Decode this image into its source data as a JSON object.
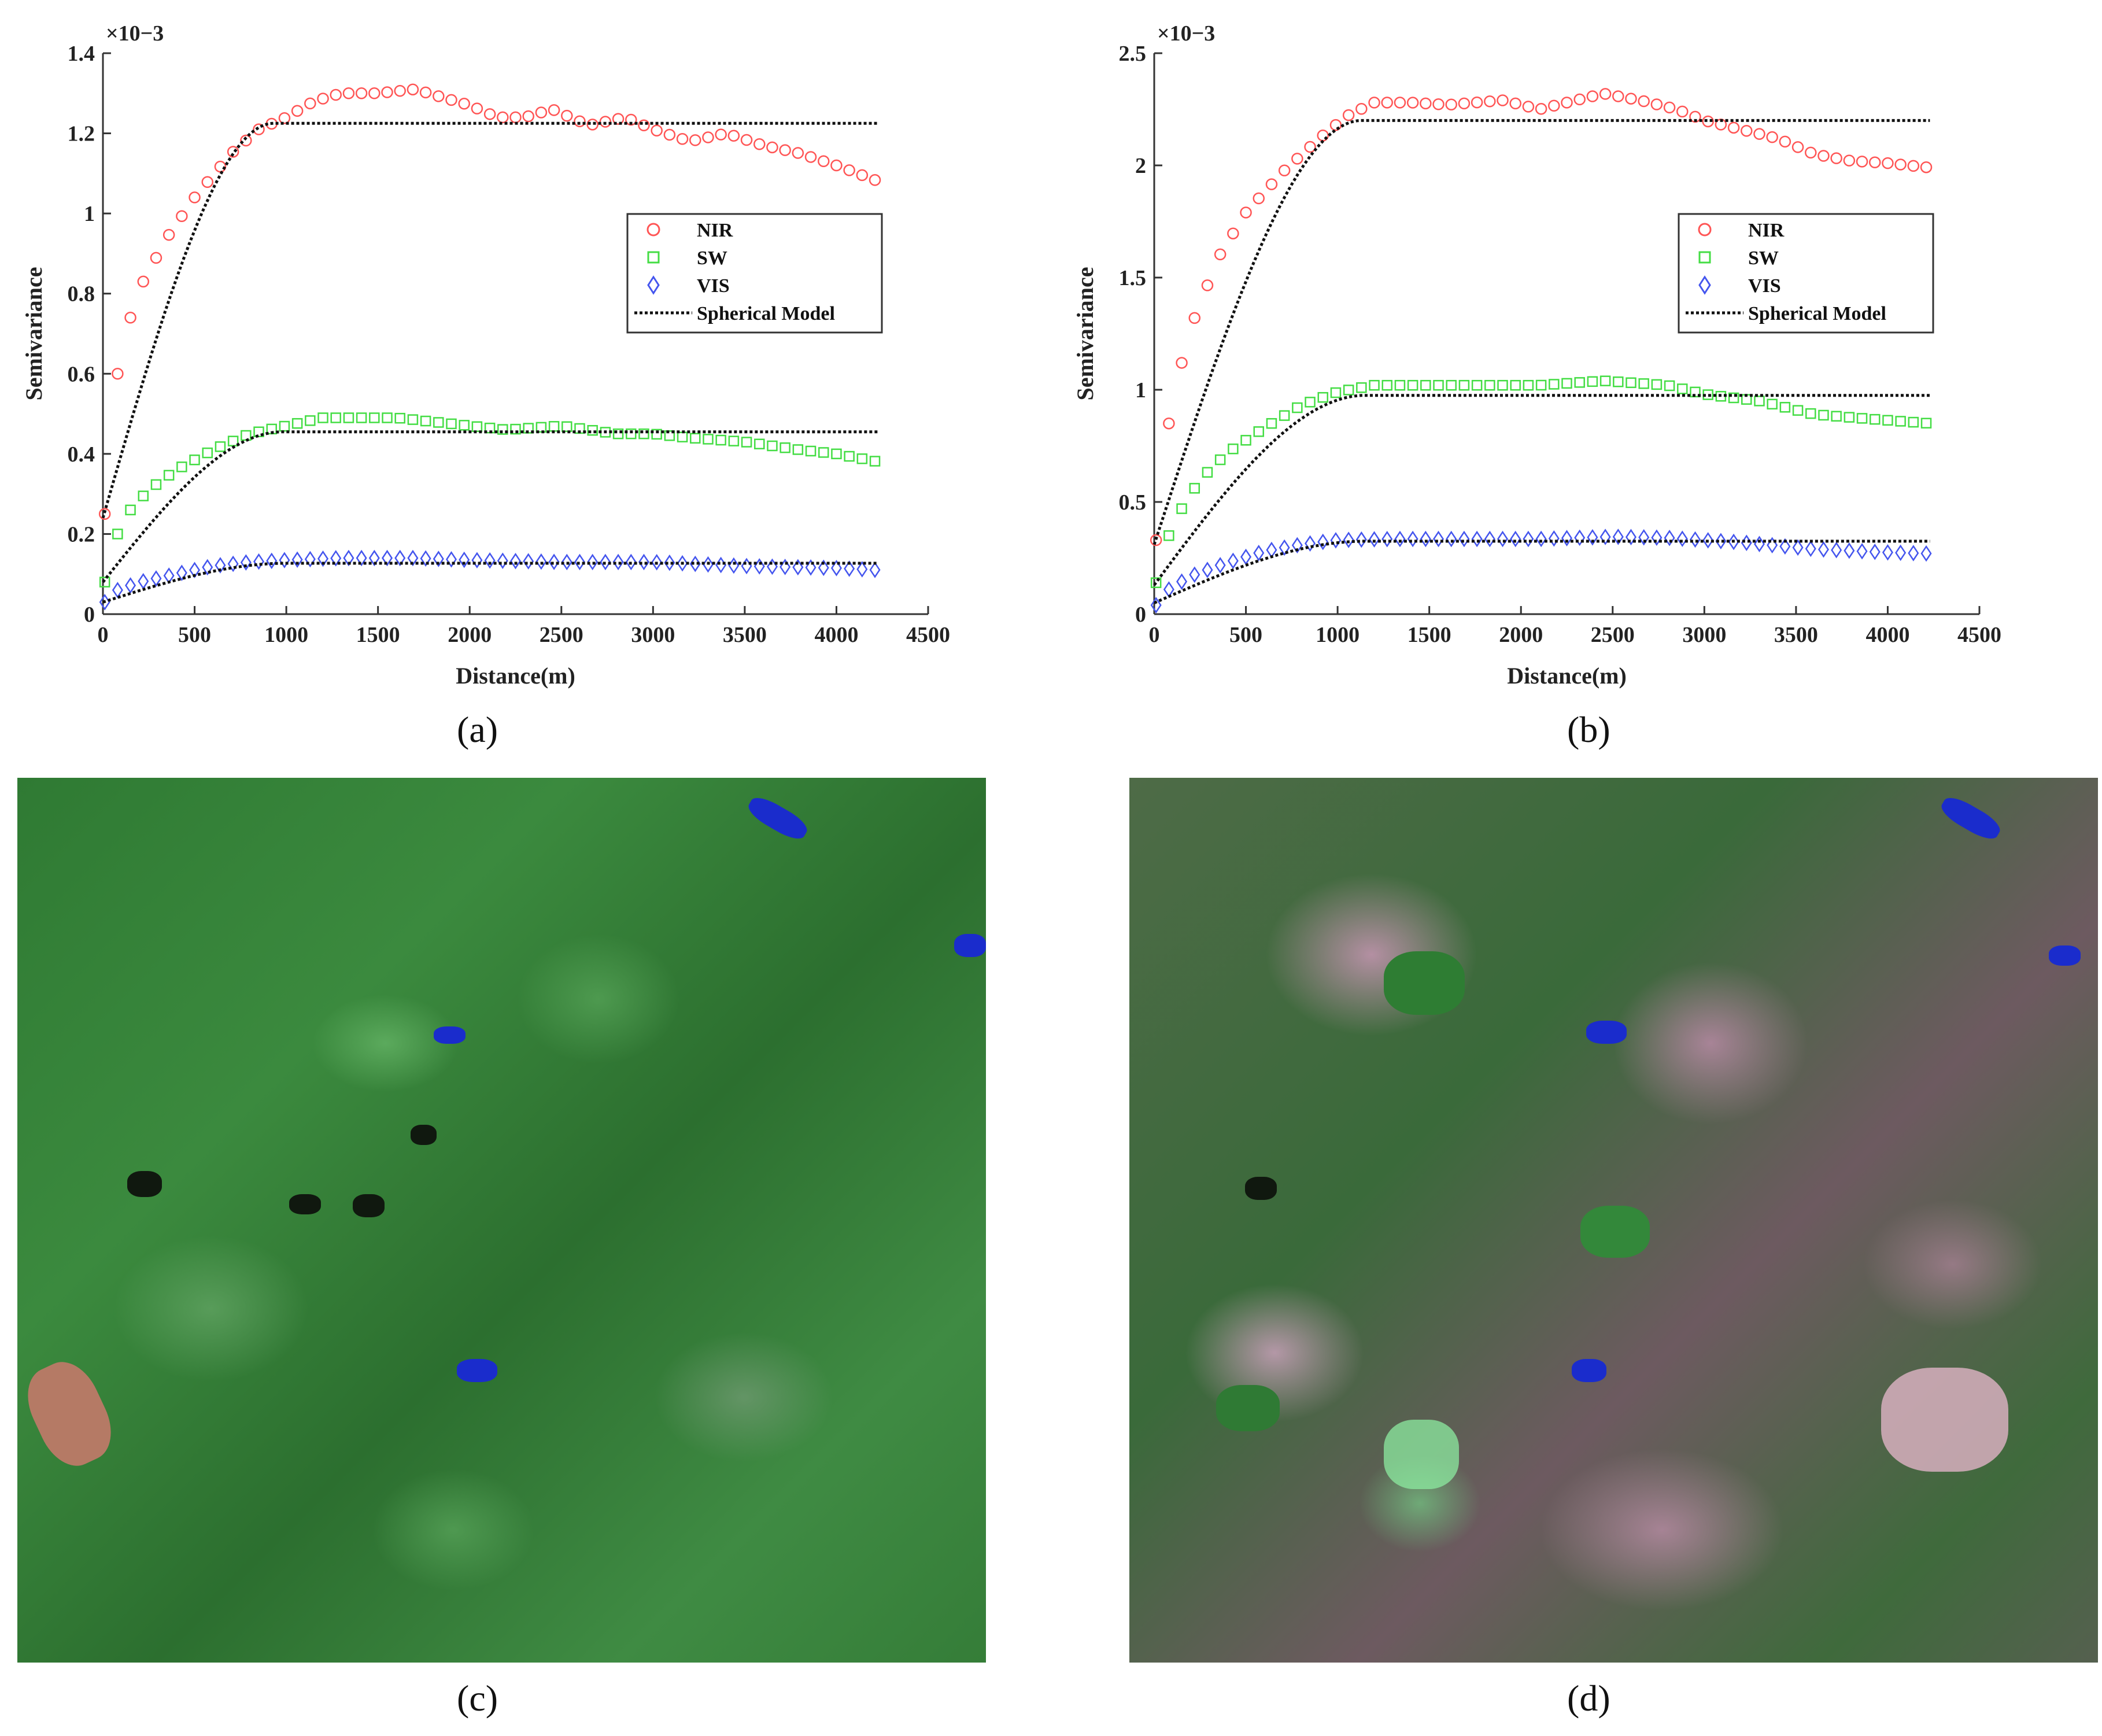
{
  "chart_data": [
    {
      "type": "scatter",
      "panel": "a",
      "caption": "(a)",
      "xlabel": "Distance(m)",
      "ylabel": "Semivariance",
      "exponent_label": "×10−3",
      "xlim": [
        0,
        4500
      ],
      "ylim": [
        0,
        1.4
      ],
      "xticks": [
        0,
        500,
        1000,
        1500,
        2000,
        2500,
        3000,
        3500,
        4000,
        4500
      ],
      "yticks": [
        0,
        0.2,
        0.4,
        0.6,
        0.8,
        1,
        1.2,
        1.4
      ],
      "ytick_labels": [
        "0",
        "0.2",
        "0.4",
        "0.6",
        "0.8",
        "1",
        "1.2",
        "1.4"
      ],
      "legend": [
        "NIR",
        "SW",
        "VIS",
        "Spherical Model"
      ],
      "legend_position": "right",
      "series": [
        {
          "name": "NIR",
          "color": "#ff5555",
          "marker": "circle",
          "knots": [
            [
              10,
              0.25
            ],
            [
              80,
              0.6
            ],
            [
              150,
              0.74
            ],
            [
              220,
              0.83
            ],
            [
              350,
              0.94
            ],
            [
              500,
              1.04
            ],
            [
              700,
              1.15
            ],
            [
              850,
              1.21
            ],
            [
              1000,
              1.24
            ],
            [
              1150,
              1.28
            ],
            [
              1300,
              1.3
            ],
            [
              1500,
              1.3
            ],
            [
              1700,
              1.31
            ],
            [
              1850,
              1.29
            ],
            [
              2000,
              1.27
            ],
            [
              2150,
              1.24
            ],
            [
              2300,
              1.24
            ],
            [
              2450,
              1.26
            ],
            [
              2650,
              1.22
            ],
            [
              2850,
              1.24
            ],
            [
              3000,
              1.21
            ],
            [
              3200,
              1.18
            ],
            [
              3400,
              1.2
            ],
            [
              3600,
              1.17
            ],
            [
              3800,
              1.15
            ],
            [
              4000,
              1.12
            ],
            [
              4230,
              1.08
            ]
          ]
        },
        {
          "name": "SW",
          "color": "#44dd44",
          "marker": "square",
          "knots": [
            [
              10,
              0.08
            ],
            [
              80,
              0.2
            ],
            [
              150,
              0.26
            ],
            [
              250,
              0.31
            ],
            [
              400,
              0.36
            ],
            [
              600,
              0.41
            ],
            [
              800,
              0.45
            ],
            [
              1000,
              0.47
            ],
            [
              1200,
              0.49
            ],
            [
              1400,
              0.49
            ],
            [
              1600,
              0.49
            ],
            [
              1800,
              0.48
            ],
            [
              2000,
              0.47
            ],
            [
              2200,
              0.46
            ],
            [
              2500,
              0.47
            ],
            [
              2800,
              0.45
            ],
            [
              3000,
              0.45
            ],
            [
              3200,
              0.44
            ],
            [
              3500,
              0.43
            ],
            [
              3800,
              0.41
            ],
            [
              4000,
              0.4
            ],
            [
              4230,
              0.38
            ]
          ]
        },
        {
          "name": "VIS",
          "color": "#4455ee",
          "marker": "diamond",
          "knots": [
            [
              10,
              0.03
            ],
            [
              80,
              0.06
            ],
            [
              200,
              0.08
            ],
            [
              400,
              0.1
            ],
            [
              600,
              0.12
            ],
            [
              800,
              0.13
            ],
            [
              1000,
              0.135
            ],
            [
              1300,
              0.14
            ],
            [
              1700,
              0.14
            ],
            [
              2000,
              0.135
            ],
            [
              2500,
              0.13
            ],
            [
              3000,
              0.13
            ],
            [
              3500,
              0.12
            ],
            [
              4000,
              0.115
            ],
            [
              4230,
              0.11
            ]
          ]
        },
        {
          "name": "Spherical Model",
          "color": "#111111",
          "line": "dotted",
          "fits": [
            {
              "nugget": 0.24,
              "sill": 1.225,
              "range": 930
            },
            {
              "nugget": 0.08,
              "sill": 0.455,
              "range": 980
            },
            {
              "nugget": 0.03,
              "sill": 0.127,
              "range": 1000
            }
          ],
          "xmax": 4230
        }
      ]
    },
    {
      "type": "scatter",
      "panel": "b",
      "caption": "(b)",
      "xlabel": "Distance(m)",
      "ylabel": "Semivariance",
      "exponent_label": "×10−3",
      "xlim": [
        0,
        4500
      ],
      "ylim": [
        0,
        2.5
      ],
      "xticks": [
        0,
        500,
        1000,
        1500,
        2000,
        2500,
        3000,
        3500,
        4000,
        4500
      ],
      "yticks": [
        0,
        0.5,
        1,
        1.5,
        2,
        2.5
      ],
      "ytick_labels": [
        "0",
        "0.5",
        "1",
        "1.5",
        "2",
        "2.5"
      ],
      "legend": [
        "NIR",
        "SW",
        "VIS",
        "Spherical Model"
      ],
      "legend_position": "right",
      "series": [
        {
          "name": "NIR",
          "color": "#ff5555",
          "marker": "circle",
          "knots": [
            [
              10,
              0.33
            ],
            [
              80,
              0.85
            ],
            [
              150,
              1.12
            ],
            [
              220,
              1.32
            ],
            [
              350,
              1.59
            ],
            [
              500,
              1.79
            ],
            [
              700,
              1.97
            ],
            [
              900,
              2.12
            ],
            [
              1050,
              2.22
            ],
            [
              1200,
              2.28
            ],
            [
              1400,
              2.28
            ],
            [
              1600,
              2.27
            ],
            [
              1900,
              2.29
            ],
            [
              2100,
              2.25
            ],
            [
              2300,
              2.29
            ],
            [
              2450,
              2.32
            ],
            [
              2650,
              2.29
            ],
            [
              2850,
              2.25
            ],
            [
              3000,
              2.2
            ],
            [
              3200,
              2.16
            ],
            [
              3400,
              2.12
            ],
            [
              3600,
              2.05
            ],
            [
              3800,
              2.02
            ],
            [
              4000,
              2.01
            ],
            [
              4230,
              1.99
            ]
          ]
        },
        {
          "name": "SW",
          "color": "#44dd44",
          "marker": "square",
          "knots": [
            [
              10,
              0.14
            ],
            [
              80,
              0.35
            ],
            [
              150,
              0.47
            ],
            [
              250,
              0.6
            ],
            [
              400,
              0.72
            ],
            [
              600,
              0.83
            ],
            [
              800,
              0.93
            ],
            [
              1000,
              0.99
            ],
            [
              1200,
              1.02
            ],
            [
              1500,
              1.02
            ],
            [
              1800,
              1.02
            ],
            [
              2100,
              1.02
            ],
            [
              2450,
              1.04
            ],
            [
              2800,
              1.02
            ],
            [
              3000,
              0.98
            ],
            [
              3300,
              0.95
            ],
            [
              3600,
              0.89
            ],
            [
              3900,
              0.87
            ],
            [
              4230,
              0.85
            ]
          ]
        },
        {
          "name": "VIS",
          "color": "#4455ee",
          "marker": "diamond",
          "knots": [
            [
              10,
              0.04
            ],
            [
              80,
              0.11
            ],
            [
              200,
              0.17
            ],
            [
              400,
              0.23
            ],
            [
              600,
              0.28
            ],
            [
              800,
              0.31
            ],
            [
              1000,
              0.33
            ],
            [
              1300,
              0.335
            ],
            [
              1700,
              0.335
            ],
            [
              2100,
              0.335
            ],
            [
              2500,
              0.345
            ],
            [
              2800,
              0.34
            ],
            [
              3200,
              0.32
            ],
            [
              3600,
              0.29
            ],
            [
              4000,
              0.275
            ],
            [
              4230,
              0.27
            ]
          ]
        },
        {
          "name": "Spherical Model",
          "color": "#111111",
          "line": "dotted",
          "fits": [
            {
              "nugget": 0.31,
              "sill": 2.2,
              "range": 1130
            },
            {
              "nugget": 0.13,
              "sill": 0.975,
              "range": 1150
            },
            {
              "nugget": 0.05,
              "sill": 0.325,
              "range": 1150
            }
          ],
          "xmax": 4230
        }
      ]
    }
  ],
  "images": [
    {
      "caption": "(c)",
      "description": "Satellite false-color composite, mostly green vegetation"
    },
    {
      "caption": "(d)",
      "description": "Satellite false-color composite, pink and green fields"
    }
  ]
}
